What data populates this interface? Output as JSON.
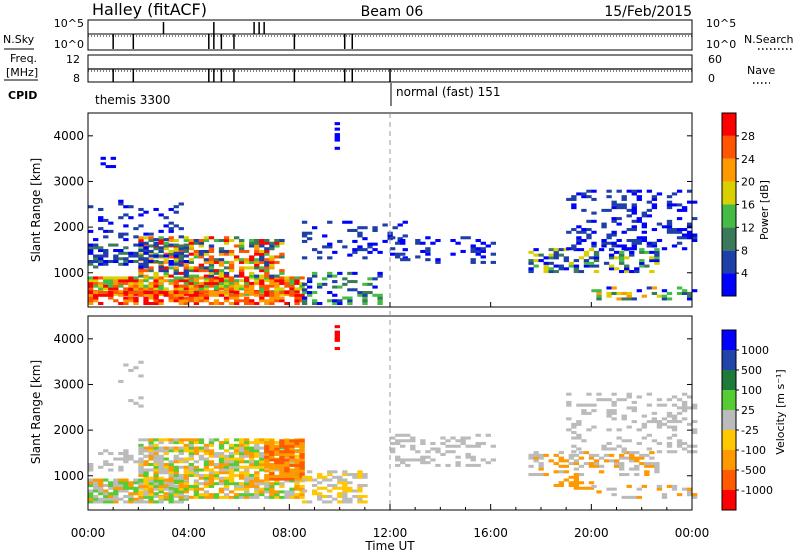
{
  "header": {
    "station": "Halley (fitACF)",
    "beam": "Beam 06",
    "date": "15/Feb/2015"
  },
  "sky_panel": {
    "left_label": "N.Sky",
    "right_label": "N.Search",
    "left_ticks": [
      "10^5",
      "10^0"
    ],
    "right_ticks": [
      "10^5",
      "10^0"
    ]
  },
  "freq_panel": {
    "left_label_1": "Freq.",
    "left_label_2": "[MHz]",
    "right_label": "Nave",
    "left_ticks": [
      "12",
      "8"
    ],
    "right_ticks": [
      "60",
      "0"
    ],
    "cpid_label": "CPID",
    "cpid_modes": [
      "themis 3300",
      "normal (fast) 151"
    ]
  },
  "colors": {
    "power": [
      "#0000ff",
      "#1f3fa8",
      "#3a7a5a",
      "#44bb44",
      "#d8d000",
      "#ff9900",
      "#ff5500",
      "#ff0000"
    ],
    "velocity": [
      "#ff0000",
      "#ff5a00",
      "#ff9900",
      "#ffc800",
      "#bbbbbb",
      "#55cc33",
      "#1f7a3a",
      "#2244aa",
      "#0000ff"
    ]
  },
  "chart_data": [
    {
      "type": "heatmap",
      "name": "power",
      "ylabel": "Slant Range [km]",
      "yticks": [
        "1000",
        "2000",
        "3000",
        "4000"
      ],
      "ylim": [
        250,
        4500
      ],
      "xlim": [
        "00:00",
        "24:00"
      ],
      "colorbar_label": "Power [dB]",
      "colorbar_ticks": [
        "4",
        "8",
        "12",
        "16",
        "20",
        "24",
        "28"
      ],
      "colorbar_range": [
        0,
        32
      ]
    },
    {
      "type": "heatmap",
      "name": "velocity",
      "ylabel": "Slant Range [km]",
      "yticks": [
        "1000",
        "2000",
        "3000",
        "4000"
      ],
      "ylim": [
        250,
        4500
      ],
      "xlim": [
        "00:00",
        "24:00"
      ],
      "colorbar_label": "Velocity [m s⁻¹]",
      "colorbar_ticks": [
        "1000",
        "500",
        "100",
        "25",
        "-25",
        "-100",
        "-500",
        "-1000"
      ]
    }
  ],
  "x_axis": {
    "ticks": [
      "00:00",
      "04:00",
      "08:00",
      "12:00",
      "16:00",
      "20:00",
      "00:00"
    ],
    "label": "Time UT"
  }
}
